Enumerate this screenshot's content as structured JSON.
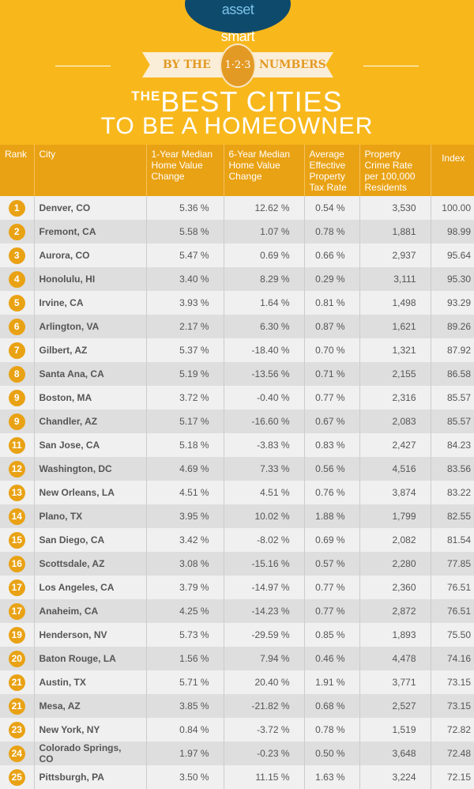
{
  "logo": {
    "text_a": "smart",
    "text_b": "asset"
  },
  "banner": {
    "left": "BY THE",
    "coin": "1·2·3",
    "right": "NUMBERS"
  },
  "title": {
    "prefix": "THE",
    "line1": "BEST CITIES",
    "line2": "TO BE A HOMEOWNER"
  },
  "colors": {
    "background": "#f8b81c",
    "header": "#e9a214",
    "logo": "#0e4a6c"
  },
  "chart_data": {
    "type": "table",
    "columns": [
      "Rank",
      "City",
      "1-Year Median Home Value Change",
      "6-Year Median Home Value Change",
      "Average Effective Property Tax Rate",
      "Property Crime Rate per 100,000 Residents",
      "Index"
    ],
    "rows": [
      [
        "1",
        "Denver, CO",
        "5.36 %",
        "12.62 %",
        "0.54 %",
        "3,530",
        "100.00"
      ],
      [
        "2",
        "Fremont, CA",
        "5.58 %",
        "1.07 %",
        "0.78 %",
        "1,881",
        "98.99"
      ],
      [
        "3",
        "Aurora, CO",
        "5.47 %",
        "0.69 %",
        "0.66 %",
        "2,937",
        "95.64"
      ],
      [
        "4",
        "Honolulu, HI",
        "3.40 %",
        "8.29 %",
        "0.29 %",
        "3,111",
        "95.30"
      ],
      [
        "5",
        "Irvine, CA",
        "3.93 %",
        "1.64 %",
        "0.81 %",
        "1,498",
        "93.29"
      ],
      [
        "6",
        "Arlington, VA",
        "2.17 %",
        "6.30 %",
        "0.87 %",
        "1,621",
        "89.26"
      ],
      [
        "7",
        "Gilbert, AZ",
        "5.37 %",
        "-18.40 %",
        "0.70 %",
        "1,321",
        "87.92"
      ],
      [
        "8",
        "Santa Ana, CA",
        "5.19 %",
        "-13.56 %",
        "0.71 %",
        "2,155",
        "86.58"
      ],
      [
        "9",
        "Boston, MA",
        "3.72 %",
        "-0.40 %",
        "0.77 %",
        "2,316",
        "85.57"
      ],
      [
        "9",
        "Chandler, AZ",
        "5.17 %",
        "-16.60 %",
        "0.67 %",
        "2,083",
        "85.57"
      ],
      [
        "11",
        "San Jose, CA",
        "5.18 %",
        "-3.83 %",
        "0.83 %",
        "2,427",
        "84.23"
      ],
      [
        "12",
        "Washington, DC",
        "4.69 %",
        "7.33 %",
        "0.56 %",
        "4,516",
        "83.56"
      ],
      [
        "13",
        "New Orleans, LA",
        "4.51 %",
        "4.51 %",
        "0.76 %",
        "3,874",
        "83.22"
      ],
      [
        "14",
        "Plano, TX",
        "3.95 %",
        "10.02 %",
        "1.88 %",
        "1,799",
        "82.55"
      ],
      [
        "15",
        "San Diego, CA",
        "3.42 %",
        "-8.02 %",
        "0.69 %",
        "2,082",
        "81.54"
      ],
      [
        "16",
        "Scottsdale, AZ",
        "3.08 %",
        "-15.16 %",
        "0.57 %",
        "2,280",
        "77.85"
      ],
      [
        "17",
        "Los Angeles, CA",
        "3.79 %",
        "-14.97 %",
        "0.77 %",
        "2,360",
        "76.51"
      ],
      [
        "17",
        "Anaheim, CA",
        "4.25 %",
        "-14.23 %",
        "0.77 %",
        "2,872",
        "76.51"
      ],
      [
        "19",
        "Henderson, NV",
        "5.73 %",
        "-29.59 %",
        "0.85 %",
        "1,893",
        "75.50"
      ],
      [
        "20",
        "Baton Rouge, LA",
        "1.56 %",
        "7.94 %",
        "0.46 %",
        "4,478",
        "74.16"
      ],
      [
        "21",
        "Austin, TX",
        "5.71 %",
        "20.40 %",
        "1.91 %",
        "3,771",
        "73.15"
      ],
      [
        "21",
        "Mesa, AZ",
        "3.85 %",
        "-21.82 %",
        "0.68 %",
        "2,527",
        "73.15"
      ],
      [
        "23",
        "New York, NY",
        "0.84 %",
        "-3.72 %",
        "0.78 %",
        "1,519",
        "72.82"
      ],
      [
        "24",
        "Colorado Springs, CO",
        "1.97 %",
        "-0.23 %",
        "0.50 %",
        "3,648",
        "72.48"
      ],
      [
        "25",
        "Pittsburgh, PA",
        "3.50 %",
        "11.15 %",
        "1.63 %",
        "3,224",
        "72.15"
      ]
    ]
  }
}
